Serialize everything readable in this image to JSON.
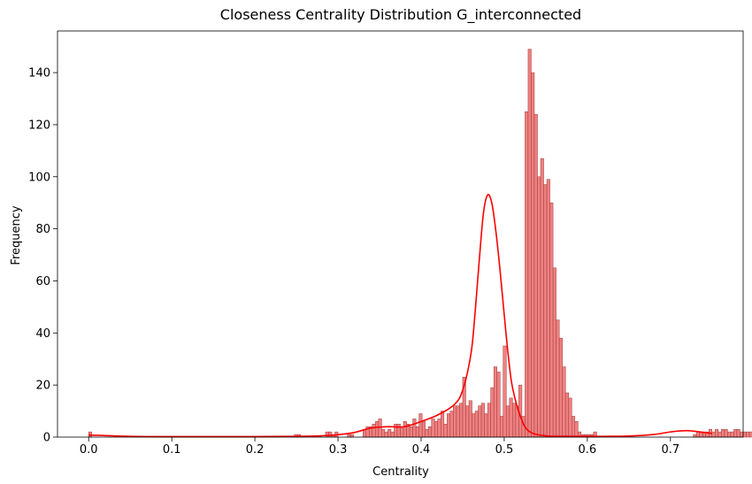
{
  "chart_data": {
    "type": "bar",
    "subtype": "histogram-with-kde",
    "title": "Closeness Centrality Distribution G_interconnected",
    "xlabel": "Centrality",
    "ylabel": "Frequency",
    "xlim": [
      -0.0375,
      0.7875
    ],
    "ylim": [
      0,
      156
    ],
    "x_ticks": [
      {
        "value": 0.0,
        "label": "0.0"
      },
      {
        "value": 0.1,
        "label": "0.1"
      },
      {
        "value": 0.2,
        "label": "0.2"
      },
      {
        "value": 0.3,
        "label": "0.3"
      },
      {
        "value": 0.4,
        "label": "0.4"
      },
      {
        "value": 0.5,
        "label": "0.5"
      },
      {
        "value": 0.6,
        "label": "0.6"
      },
      {
        "value": 0.7,
        "label": "0.7"
      }
    ],
    "y_ticks": [
      {
        "value": 0,
        "label": "0"
      },
      {
        "value": 20,
        "label": "20"
      },
      {
        "value": 40,
        "label": "40"
      },
      {
        "value": 60,
        "label": "60"
      },
      {
        "value": 80,
        "label": "80"
      },
      {
        "value": 100,
        "label": "100"
      },
      {
        "value": 120,
        "label": "120"
      },
      {
        "value": 140,
        "label": "140"
      }
    ],
    "grid": false,
    "legend": "none",
    "colors": {
      "bar_fill": "#f08080",
      "bar_edge": "#9a3b3b",
      "kde_line": "#ff0000",
      "axis": "#000000"
    },
    "bins": {
      "start": 0.0,
      "width": 0.00375,
      "counts": [
        2,
        0,
        0,
        0,
        0,
        0,
        0,
        0,
        0,
        0,
        0,
        0,
        0,
        0,
        0,
        0,
        0,
        0,
        0,
        0,
        0,
        0,
        0,
        0,
        0,
        0,
        0,
        0,
        0,
        0,
        0,
        0,
        0,
        0,
        0,
        0,
        0,
        0,
        0,
        0,
        0,
        0,
        0,
        0,
        0,
        0,
        0,
        0,
        0,
        0,
        0,
        0,
        0,
        0,
        0,
        0,
        0,
        0,
        0,
        0,
        0,
        0,
        0,
        0,
        0,
        0,
        1,
        1,
        0,
        0,
        0,
        0,
        0,
        0,
        0,
        0,
        2,
        2,
        1,
        2,
        0,
        0,
        0,
        1,
        1,
        0,
        0,
        0,
        3,
        4,
        4,
        5,
        6,
        7,
        3,
        2,
        3,
        2,
        5,
        5,
        4,
        6,
        5,
        4,
        7,
        4,
        9,
        6,
        3,
        4,
        7,
        6,
        7,
        10,
        5,
        9,
        10,
        12,
        12,
        13,
        23,
        12,
        14,
        9,
        10,
        12,
        13,
        9,
        13,
        19,
        27,
        25,
        8,
        35,
        12,
        15,
        13,
        12,
        20,
        8,
        125,
        149,
        140,
        124,
        100,
        107,
        97,
        99,
        90,
        65,
        45,
        38,
        27,
        17,
        15,
        8,
        6,
        2,
        1,
        1,
        1,
        1,
        2,
        0,
        0,
        0,
        0,
        0,
        0,
        0,
        0,
        0,
        0,
        0,
        0,
        0,
        0,
        0,
        0,
        0,
        0,
        0,
        0,
        0,
        0,
        0,
        0,
        0,
        0,
        0,
        0,
        0,
        0,
        0,
        1,
        2,
        2,
        2,
        2,
        3,
        2,
        3,
        2,
        3,
        3,
        2,
        2,
        3,
        3,
        2,
        2,
        2,
        2,
        1,
        2,
        1,
        1,
        1
      ]
    },
    "kde": {
      "x": [
        0.0,
        0.05,
        0.1,
        0.15,
        0.2,
        0.25,
        0.28,
        0.3,
        0.32,
        0.34,
        0.36,
        0.38,
        0.4,
        0.42,
        0.44,
        0.45,
        0.46,
        0.465,
        0.47,
        0.475,
        0.48,
        0.485,
        0.49,
        0.495,
        0.5,
        0.505,
        0.51,
        0.52,
        0.53,
        0.55,
        0.58,
        0.62,
        0.65,
        0.68,
        0.7,
        0.72,
        0.74,
        0.75
      ],
      "y": [
        0.8,
        0.3,
        0.2,
        0.2,
        0.2,
        0.3,
        0.5,
        0.9,
        1.8,
        3.5,
        4.0,
        4.0,
        6.0,
        8.5,
        12.5,
        18.0,
        32.0,
        48.0,
        68.0,
        86.0,
        93.0,
        90.0,
        79.0,
        64.0,
        47.0,
        31.0,
        19.0,
        7.5,
        2.2,
        0.5,
        0.3,
        0.3,
        0.4,
        1.0,
        2.0,
        2.5,
        1.8,
        1.4
      ]
    }
  }
}
